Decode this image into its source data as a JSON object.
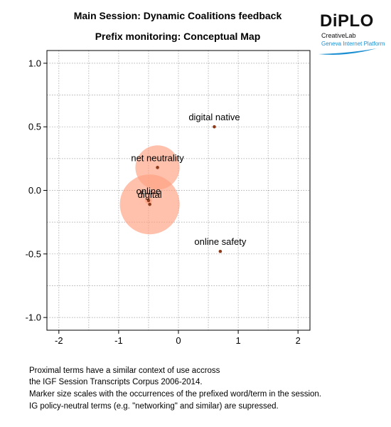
{
  "chart_data": {
    "type": "scatter",
    "title": "Main Session: Dynamic Coalitions feedback",
    "subtitle": "Prefix monitoring: Conceptual Map",
    "xlim": [
      -2.2,
      2.2
    ],
    "ylim": [
      -1.1,
      1.1
    ],
    "x_ticks": [
      -2,
      -1,
      0,
      1,
      2
    ],
    "y_ticks": [
      1.0,
      0.5,
      0.0,
      -0.5,
      -1.0
    ],
    "x_tick_labels": [
      "-2",
      "-1",
      "0",
      "1",
      "2"
    ],
    "y_tick_labels": [
      "1.0",
      "0.5",
      "0.0",
      "-0.5",
      "-1.0"
    ],
    "grid": true,
    "points": [
      {
        "label": "digital native",
        "x": 0.6,
        "y": 0.5,
        "size": 0
      },
      {
        "label": "net neutrality",
        "x": -0.35,
        "y": 0.18,
        "size": 0.37
      },
      {
        "label": "online",
        "x": -0.5,
        "y": -0.08,
        "size": 0.06
      },
      {
        "label": "digital",
        "x": -0.48,
        "y": -0.11,
        "size": 0.5
      },
      {
        "label": "online safety",
        "x": 0.7,
        "y": -0.48,
        "size": 0
      }
    ],
    "colors": {
      "point": "#8b3a1a",
      "bubble": "#ff9f7f",
      "grid": "#999999"
    }
  },
  "logo": {
    "brand": "DiPLO",
    "line1": "CreativeLab",
    "line2": "Geneva Internet Platform"
  },
  "captions": [
    "Proximal terms have a similar context of use accross",
    "the IGF Session Transcripts Corpus 2006-2014.",
    "Marker size scales with the occurrences of the prefixed word/term in the session.",
    "IG policy-neutral terms (e.g. \"networking\" and similar) are supressed."
  ]
}
